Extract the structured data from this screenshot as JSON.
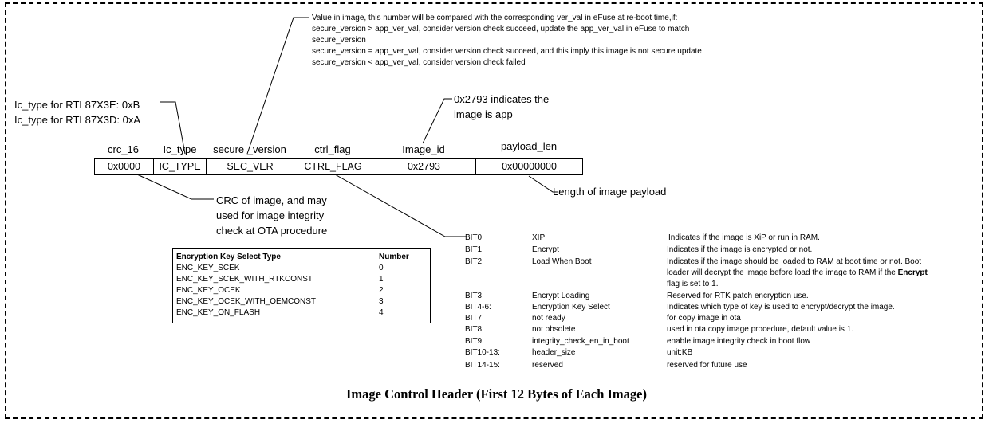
{
  "title": "Image Control Header (First 12 Bytes of Each Image)",
  "fields": [
    {
      "name": "crc_16",
      "value": "0x0000"
    },
    {
      "name": "Ic_type",
      "value": "IC_TYPE"
    },
    {
      "name": "secure _version",
      "value": "SEC_VER"
    },
    {
      "name": "ctrl_flag",
      "value": "CTRL_FLAG"
    },
    {
      "name": "Image_id",
      "value": "0x2793"
    },
    {
      "name": "payload_len",
      "value": "0x00000000"
    }
  ],
  "notes": {
    "secure_version": [
      "Value in image, this number will be compared with the corresponding ver_val in eFuse at re-boot time,if:",
      "secure_version > app_ver_val, consider version check succeed, update the app_ver_val in eFuse to match",
      "secure_version",
      "secure_version = app_ver_val, consider version check succeed, and this imply this image is not secure update",
      "secure_version < app_ver_val, consider version check failed"
    ],
    "ic_type": [
      "Ic_type for  RTL87X3E:  0xB",
      "Ic_type for  RTL87X3D: 0xA"
    ],
    "image_id": [
      "0x2793 indicates the",
      "image is app"
    ],
    "crc": [
      "CRC of image, and may",
      "used for image integrity",
      "check at OTA procedure"
    ],
    "payload_len": "Length of image payload"
  },
  "enc_table": {
    "headers": [
      "Encryption Key Select Type",
      "Number"
    ],
    "rows": [
      [
        "ENC_KEY_SCEK",
        "0"
      ],
      [
        "ENC_KEY_SCEK_WITH_RTKCONST",
        "1"
      ],
      [
        "ENC_KEY_OCEK",
        "2"
      ],
      [
        "ENC_KEY_OCEK_WITH_OEMCONST",
        "3"
      ],
      [
        "ENC_KEY_ON_FLASH",
        "4"
      ]
    ]
  },
  "bits": [
    {
      "bit": "BIT0:",
      "name": "XIP",
      "desc": [
        "Indicates if the image is XiP or run in RAM."
      ]
    },
    {
      "bit": "BIT1:",
      "name": "Encrypt",
      "desc": [
        "Indicates if the image is encrypted or not."
      ]
    },
    {
      "bit": "BIT2:",
      "name": "Load When Boot",
      "desc": [
        "Indicates if the image should be loaded to RAM at boot time or not. Boot",
        " loader will decrypt the image before load the image to RAM if the ",
        "flag is set to 1."
      ],
      "desc_bold": "Encrypt"
    },
    {
      "bit": "BIT3:",
      "name": "Encrypt Loading",
      "desc": [
        "Reserved for RTK patch encryption use."
      ]
    },
    {
      "bit": "BIT4-6:",
      "name": "Encryption Key Select",
      "desc": [
        "Indicates which type of key is used to encrypt/decrypt the image."
      ]
    },
    {
      "bit": "BIT7:",
      "name": "not ready",
      "desc": [
        "for copy image in ota"
      ]
    },
    {
      "bit": "BIT8:",
      "name": "not obsolete",
      "desc": [
        "used in ota copy image procedure, default value is 1."
      ]
    },
    {
      "bit": "BIT9:",
      "name": "integrity_check_en_in_boot",
      "desc": [
        " enable image integrity check in boot flow"
      ]
    },
    {
      "bit": "BIT10-13:",
      "name": "header_size",
      "desc": [
        " unit:KB"
      ]
    },
    {
      "bit": "BIT14-15:",
      "name": "reserved",
      "desc": [
        " reserved for future use"
      ]
    }
  ]
}
